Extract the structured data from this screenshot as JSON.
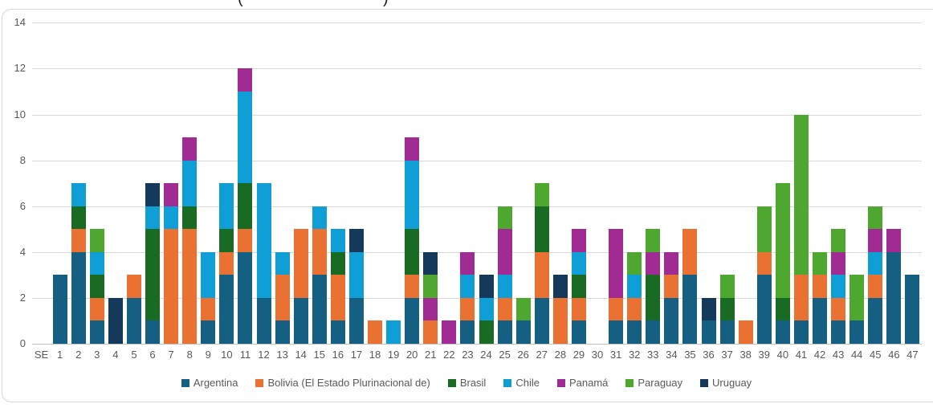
{
  "window": {
    "clipped_title_fragments": [
      {
        "char": "(",
        "x": 296
      },
      {
        "char": ")",
        "x": 477
      }
    ]
  },
  "chart_data": {
    "type": "bar",
    "stacked": true,
    "title": "",
    "xlabel": "",
    "ylabel": "",
    "ylim": [
      0,
      14
    ],
    "yticks": [
      0,
      2,
      4,
      6,
      8,
      10,
      12,
      14
    ],
    "grid": true,
    "legend_position": "bottom",
    "axis_label_color": "#595959",
    "gridline_color": "#d9d9d9",
    "categories": [
      "SE",
      "1",
      "2",
      "3",
      "4",
      "5",
      "6",
      "7",
      "8",
      "9",
      "10",
      "11",
      "12",
      "13",
      "14",
      "15",
      "16",
      "17",
      "18",
      "19",
      "20",
      "21",
      "22",
      "23",
      "24",
      "25",
      "26",
      "27",
      "28",
      "29",
      "30",
      "31",
      "32",
      "33",
      "34",
      "35",
      "36",
      "37",
      "38",
      "39",
      "40",
      "41",
      "42",
      "43",
      "44",
      "45",
      "46",
      "47"
    ],
    "series": [
      {
        "name": "Argentina",
        "color": "#156082",
        "values": [
          0,
          3,
          4,
          1,
          0,
          2,
          1,
          0,
          0,
          1,
          3,
          4,
          2,
          1,
          2,
          3,
          1,
          2,
          0,
          0,
          2,
          0,
          0,
          1,
          0,
          1,
          1,
          2,
          0,
          1,
          0,
          1,
          1,
          1,
          2,
          3,
          1,
          1,
          0,
          3,
          1,
          1,
          2,
          1,
          1,
          2,
          4,
          3
        ]
      },
      {
        "name": "Bolivia (El Estado Plurinacional de)",
        "color": "#E97132",
        "values": [
          0,
          0,
          1,
          1,
          0,
          1,
          0,
          5,
          5,
          1,
          1,
          1,
          0,
          2,
          3,
          2,
          2,
          0,
          1,
          0,
          1,
          1,
          0,
          1,
          0,
          1,
          0,
          2,
          2,
          1,
          0,
          1,
          1,
          0,
          1,
          2,
          0,
          0,
          1,
          1,
          0,
          2,
          1,
          1,
          0,
          1,
          0,
          0
        ]
      },
      {
        "name": "Brasil",
        "color": "#196B24",
        "values": [
          0,
          0,
          1,
          1,
          0,
          0,
          4,
          0,
          1,
          0,
          1,
          2,
          0,
          0,
          0,
          0,
          1,
          0,
          0,
          0,
          2,
          0,
          0,
          0,
          1,
          0,
          0,
          2,
          0,
          1,
          0,
          0,
          0,
          2,
          0,
          0,
          0,
          1,
          0,
          0,
          1,
          0,
          0,
          0,
          0,
          0,
          0,
          0
        ]
      },
      {
        "name": "Chile",
        "color": "#0F9ED5",
        "values": [
          0,
          0,
          1,
          1,
          0,
          0,
          1,
          1,
          2,
          2,
          2,
          4,
          5,
          1,
          0,
          1,
          1,
          2,
          0,
          1,
          3,
          0,
          0,
          1,
          1,
          1,
          0,
          0,
          0,
          1,
          0,
          0,
          1,
          0,
          0,
          0,
          0,
          0,
          0,
          0,
          0,
          0,
          0,
          1,
          0,
          1,
          0,
          0
        ]
      },
      {
        "name": "Panamá",
        "color": "#A02B93",
        "values": [
          0,
          0,
          0,
          0,
          0,
          0,
          0,
          1,
          1,
          0,
          0,
          1,
          0,
          0,
          0,
          0,
          0,
          0,
          0,
          0,
          1,
          1,
          1,
          1,
          0,
          2,
          0,
          0,
          0,
          1,
          0,
          3,
          0,
          1,
          1,
          0,
          0,
          0,
          0,
          0,
          0,
          0,
          0,
          1,
          0,
          1,
          1,
          0
        ]
      },
      {
        "name": "Paraguay",
        "color": "#4EA72E",
        "values": [
          0,
          0,
          0,
          1,
          0,
          0,
          0,
          0,
          0,
          0,
          0,
          0,
          0,
          0,
          0,
          0,
          0,
          0,
          0,
          0,
          0,
          1,
          0,
          0,
          0,
          1,
          1,
          1,
          0,
          0,
          0,
          0,
          1,
          1,
          0,
          0,
          0,
          1,
          0,
          2,
          5,
          7,
          1,
          1,
          2,
          1,
          0,
          0
        ]
      },
      {
        "name": "Uruguay",
        "color": "#15395B",
        "values": [
          0,
          0,
          0,
          0,
          2,
          0,
          1,
          0,
          0,
          0,
          0,
          0,
          0,
          0,
          0,
          0,
          0,
          1,
          0,
          0,
          0,
          1,
          0,
          0,
          1,
          0,
          0,
          0,
          1,
          0,
          0,
          0,
          0,
          0,
          0,
          0,
          1,
          0,
          0,
          0,
          0,
          0,
          0,
          0,
          0,
          0,
          0,
          0
        ]
      }
    ]
  }
}
